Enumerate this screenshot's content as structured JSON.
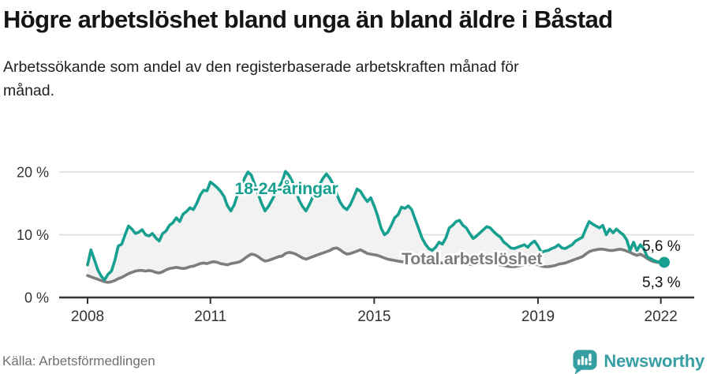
{
  "header": {
    "title": "Högre arbetslöshet bland unga än bland äldre i Båstad",
    "subtitle": "Arbetssökande som andel av den registerbaserade arbetskraften månad för månad."
  },
  "footer": {
    "source": "Källa: Arbetsförmedlingen",
    "brand": "Newsworthy"
  },
  "colors": {
    "accent_teal": "#17a08f",
    "line_gray": "#7d7d7d",
    "area_fill": "#f2f2f2",
    "grid": "#dcdcdc",
    "axis": "#333333",
    "tick_text": "#333333",
    "end_label_text": "#111111",
    "text_dark": "#151515",
    "text_muted": "#6f6f6f",
    "logo_teal": "#379fa4"
  },
  "chart_data": {
    "type": "line",
    "title": "Högre arbetslöshet bland unga än bland äldre i Båstad",
    "subtitle": "Arbetssökande som andel av den registerbaserade arbetskraften månad för månad.",
    "x_unit": "month",
    "x_start": "2008-01",
    "x_end": "2022-02",
    "x_ticks": [
      2008,
      2011,
      2015,
      2019,
      2022
    ],
    "y_ticks": [
      {
        "value": 20,
        "label": "20 %"
      },
      {
        "value": 10,
        "label": "10 %"
      },
      {
        "value": 0,
        "label": "0 %"
      }
    ],
    "ylim": [
      0,
      22
    ],
    "grid": true,
    "legend_position": "inline-labels",
    "area_fill_between_series": true,
    "series": [
      {
        "name": "18-24-åringar",
        "role": "youth-unemployment",
        "color": "#17a08f",
        "end_label": "5,6 %",
        "latest_value": 5.6,
        "values": [
          5.2,
          7.6,
          6.0,
          4.4,
          3.4,
          2.8,
          3.7,
          4.2,
          5.9,
          8.2,
          8.5,
          10.0,
          11.4,
          10.9,
          10.2,
          10.4,
          10.8,
          10.0,
          9.8,
          10.2,
          9.5,
          9.0,
          10.2,
          10.6,
          11.5,
          11.9,
          12.7,
          12.1,
          13.3,
          13.7,
          14.3,
          14.0,
          15.0,
          16.3,
          17.1,
          17.0,
          18.4,
          18.0,
          17.5,
          16.9,
          16.1,
          14.6,
          13.8,
          14.8,
          16.5,
          17.5,
          19.0,
          20.0,
          19.5,
          18.0,
          16.5,
          15.0,
          13.8,
          14.5,
          15.5,
          16.5,
          17.5,
          18.5,
          20.1,
          19.5,
          18.5,
          17.0,
          15.5,
          14.5,
          13.8,
          14.8,
          16.0,
          17.0,
          18.0,
          19.0,
          19.7,
          19.0,
          18.0,
          16.5,
          15.2,
          14.4,
          14.0,
          14.8,
          16.0,
          17.3,
          16.9,
          16.0,
          15.3,
          15.9,
          14.6,
          13.0,
          11.1,
          10.0,
          10.4,
          11.5,
          12.7,
          13.2,
          14.4,
          14.2,
          14.6,
          14.0,
          12.5,
          11.0,
          9.5,
          8.5,
          7.8,
          7.5,
          8.0,
          8.8,
          8.5,
          9.5,
          11.1,
          11.5,
          12.1,
          12.3,
          11.5,
          11.1,
          10.2,
          9.4,
          9.8,
          10.3,
          10.8,
          11.3,
          11.1,
          10.5,
          10.0,
          9.6,
          8.8,
          8.4,
          7.9,
          7.8,
          8.0,
          8.2,
          8.4,
          8.0,
          8.6,
          9.0,
          8.2,
          7.2,
          7.4,
          7.5,
          7.8,
          8.0,
          8.4,
          7.9,
          7.8,
          8.1,
          8.4,
          9.0,
          9.3,
          9.6,
          10.9,
          12.1,
          11.7,
          11.4,
          11.1,
          11.5,
          10.0,
          10.9,
          10.3,
          10.9,
          10.4,
          10.0,
          9.2,
          7.5,
          8.8,
          7.5,
          8.4,
          7.8,
          6.5,
          6.2,
          5.9,
          5.7,
          5.7,
          5.6
        ]
      },
      {
        "name": "Total arbetslöshet",
        "role": "total-unemployment",
        "color": "#7d7d7d",
        "end_label": "5,3 %",
        "latest_value": 5.3,
        "values": [
          3.5,
          3.3,
          3.1,
          2.9,
          2.7,
          2.5,
          2.4,
          2.5,
          2.7,
          3.0,
          3.2,
          3.5,
          3.8,
          4.0,
          4.2,
          4.3,
          4.3,
          4.2,
          4.3,
          4.2,
          4.0,
          3.9,
          4.1,
          4.4,
          4.6,
          4.7,
          4.8,
          4.7,
          4.6,
          4.7,
          4.9,
          5.0,
          5.2,
          5.4,
          5.5,
          5.4,
          5.6,
          5.7,
          5.6,
          5.4,
          5.3,
          5.2,
          5.4,
          5.5,
          5.6,
          5.8,
          6.2,
          6.6,
          6.9,
          6.8,
          6.5,
          6.1,
          5.8,
          5.9,
          6.1,
          6.3,
          6.5,
          6.6,
          7.0,
          7.2,
          7.1,
          6.9,
          6.6,
          6.3,
          6.1,
          6.3,
          6.5,
          6.7,
          6.9,
          7.1,
          7.3,
          7.5,
          7.8,
          7.9,
          7.6,
          7.2,
          6.9,
          7.0,
          7.2,
          7.4,
          7.6,
          7.3,
          7.0,
          6.9,
          6.8,
          6.7,
          6.5,
          6.3,
          6.1,
          6.0,
          5.9,
          5.8,
          5.7,
          5.7,
          5.8,
          5.9,
          5.8,
          5.7,
          5.6,
          5.5,
          5.4,
          5.3,
          5.4,
          5.5,
          5.5,
          5.6,
          5.7,
          5.8,
          5.7,
          5.6,
          5.5,
          5.4,
          5.3,
          5.2,
          5.3,
          5.4,
          5.5,
          5.6,
          5.5,
          5.4,
          5.3,
          5.2,
          5.1,
          5.0,
          4.9,
          4.9,
          5.0,
          5.1,
          5.2,
          5.2,
          5.3,
          5.4,
          5.2,
          5.0,
          4.9,
          4.9,
          5.0,
          5.1,
          5.3,
          5.4,
          5.5,
          5.7,
          5.9,
          6.1,
          6.3,
          6.5,
          6.9,
          7.3,
          7.5,
          7.6,
          7.7,
          7.7,
          7.6,
          7.5,
          7.5,
          7.6,
          7.7,
          7.6,
          7.4,
          7.2,
          6.9,
          6.7,
          6.9,
          6.6,
          6.2,
          5.9,
          5.7,
          5.6,
          5.5,
          5.3
        ]
      }
    ]
  }
}
